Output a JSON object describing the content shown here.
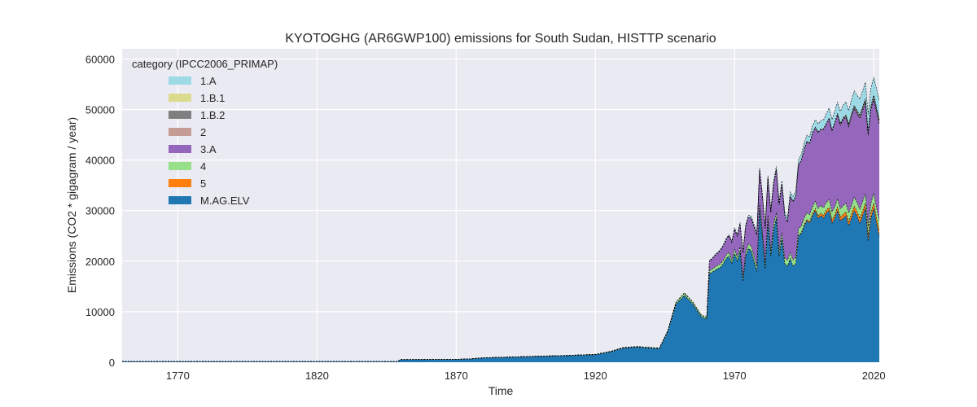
{
  "chart_data": {
    "type": "area",
    "stacked": true,
    "title": "KYOTOGHG (AR6GWP100) emissions for South Sudan, HISTTP scenario",
    "xlabel": "Time",
    "ylabel": "Emissions (CO2 * gigagram / year)",
    "xlim": [
      1750,
      2022
    ],
    "ylim": [
      0,
      62000
    ],
    "x_ticks": [
      1770,
      1820,
      1870,
      1920,
      1970,
      2020
    ],
    "y_ticks": [
      0,
      10000,
      20000,
      30000,
      40000,
      50000,
      60000
    ],
    "grid": true,
    "legend": {
      "title": "category (IPCC2006_PRIMAP)",
      "placement": "top-left",
      "entries": [
        "1.A",
        "1.B.1",
        "1.B.2",
        "2",
        "3.A",
        "4",
        "5",
        "M.AG.ELV"
      ]
    },
    "colors": {
      "M.AG.ELV": "#1f77b4",
      "5": "#ff7f0e",
      "4": "#98df8a",
      "3.A": "#9467bd",
      "2": "#c49c94",
      "1.B.2": "#7f7f7f",
      "1.B.1": "#dbdb8d",
      "1.A": "#9edae5"
    },
    "x": [
      1750,
      1849,
      1850,
      1870,
      1875,
      1880,
      1890,
      1900,
      1910,
      1920,
      1925,
      1930,
      1935,
      1940,
      1943,
      1946,
      1949,
      1952,
      1955,
      1958,
      1960,
      1961,
      1962,
      1963,
      1964,
      1965,
      1966,
      1967,
      1968,
      1969,
      1970,
      1971,
      1972,
      1973,
      1974,
      1975,
      1976,
      1977,
      1978,
      1979,
      1980,
      1981,
      1982,
      1983,
      1984,
      1985,
      1986,
      1987,
      1988,
      1989,
      1990,
      1991,
      1992,
      1993,
      1994,
      1995,
      1996,
      1997,
      1998,
      1999,
      2000,
      2001,
      2002,
      2003,
      2004,
      2005,
      2006,
      2007,
      2008,
      2009,
      2010,
      2011,
      2012,
      2013,
      2014,
      2015,
      2016,
      2017,
      2018,
      2019,
      2020,
      2021,
      2022
    ],
    "series": [
      {
        "name": "M.AG.ELV",
        "values": [
          150,
          150,
          500,
          550,
          650,
          850,
          1000,
          1150,
          1300,
          1500,
          2000,
          2800,
          3000,
          2800,
          2700,
          6000,
          11500,
          13200,
          11500,
          9000,
          8500,
          17500,
          17800,
          18200,
          18500,
          18800,
          19500,
          20500,
          21000,
          19500,
          21500,
          20000,
          22000,
          16000,
          21000,
          22500,
          22000,
          20000,
          18000,
          30500,
          25000,
          18500,
          28000,
          21000,
          26000,
          28500,
          21000,
          24500,
          19500,
          19000,
          20500,
          19000,
          19500,
          25000,
          25500,
          27000,
          28000,
          27500,
          29000,
          30000,
          28500,
          29000,
          28500,
          29500,
          30000,
          27500,
          28500,
          30000,
          28000,
          28500,
          29000,
          27000,
          28500,
          30000,
          29000,
          27500,
          29000,
          30500,
          24000,
          28500,
          30500,
          27500,
          25000
        ]
      },
      {
        "name": "5",
        "values": [
          0,
          0,
          0,
          0,
          0,
          0,
          0,
          0,
          0,
          0,
          0,
          0,
          0,
          0,
          0,
          0,
          0,
          0,
          0,
          0,
          0,
          0,
          0,
          0,
          0,
          0,
          0,
          0,
          0,
          0,
          0,
          0,
          0,
          0,
          0,
          0,
          0,
          0,
          0,
          0,
          0,
          0,
          0,
          0,
          0,
          0,
          0,
          0,
          0,
          0,
          0,
          0,
          0,
          100,
          150,
          200,
          250,
          300,
          350,
          400,
          450,
          500,
          550,
          600,
          600,
          650,
          650,
          700,
          700,
          750,
          750,
          800,
          800,
          850,
          850,
          900,
          900,
          950,
          950,
          1000,
          1000,
          1050,
          1050
        ]
      },
      {
        "name": "4",
        "values": [
          0,
          0,
          30,
          30,
          30,
          40,
          40,
          50,
          50,
          60,
          80,
          100,
          110,
          100,
          100,
          200,
          400,
          500,
          400,
          350,
          350,
          600,
          600,
          650,
          650,
          700,
          700,
          700,
          750,
          750,
          800,
          800,
          850,
          850,
          850,
          900,
          900,
          950,
          950,
          1000,
          1000,
          1000,
          1050,
          1050,
          1100,
          1100,
          1100,
          1150,
          1150,
          1200,
          1200,
          1250,
          1250,
          1300,
          1300,
          1350,
          1350,
          1400,
          1400,
          1450,
          1450,
          1500,
          1500,
          1550,
          1550,
          1600,
          1600,
          1650,
          1650,
          1700,
          1700,
          1750,
          1750,
          1800,
          1800,
          1850,
          1850,
          1900,
          1900,
          1950,
          1950,
          2000,
          2000
        ]
      },
      {
        "name": "3.A",
        "values": [
          0,
          0,
          0,
          0,
          0,
          0,
          0,
          0,
          0,
          0,
          0,
          0,
          0,
          0,
          0,
          0,
          0,
          0,
          0,
          0,
          0,
          2000,
          2100,
          2300,
          2500,
          2700,
          2900,
          3100,
          3300,
          3500,
          4000,
          4200,
          4500,
          4800,
          5000,
          5300,
          5600,
          5900,
          6200,
          6500,
          6800,
          7000,
          7300,
          7600,
          8000,
          8500,
          9000,
          9500,
          8500,
          7500,
          11000,
          11500,
          12000,
          12500,
          13000,
          13500,
          14000,
          14000,
          14500,
          14500,
          15000,
          15000,
          15500,
          15500,
          16000,
          16000,
          16500,
          16500,
          16500,
          17000,
          17000,
          17000,
          17500,
          17500,
          17500,
          18000,
          18000,
          18000,
          18000,
          18500,
          18500,
          19000,
          19000
        ]
      },
      {
        "name": "2",
        "values": [
          0,
          0,
          0,
          0,
          0,
          0,
          0,
          0,
          0,
          0,
          0,
          0,
          0,
          0,
          0,
          0,
          0,
          0,
          0,
          0,
          0,
          0,
          0,
          0,
          0,
          0,
          0,
          0,
          0,
          0,
          0,
          0,
          0,
          0,
          0,
          0,
          0,
          0,
          0,
          0,
          0,
          0,
          0,
          0,
          0,
          0,
          0,
          0,
          0,
          0,
          100,
          100,
          100,
          100,
          100,
          120,
          120,
          120,
          120,
          130,
          130,
          130,
          140,
          140,
          140,
          150,
          150,
          150,
          160,
          160,
          160,
          170,
          170,
          170,
          180,
          180,
          180,
          190,
          190,
          190,
          200,
          200,
          200
        ]
      },
      {
        "name": "1.B.2",
        "values": [
          0,
          0,
          0,
          0,
          0,
          0,
          0,
          0,
          0,
          0,
          0,
          0,
          0,
          0,
          0,
          0,
          0,
          0,
          0,
          0,
          0,
          0,
          0,
          0,
          0,
          0,
          0,
          0,
          0,
          0,
          0,
          0,
          0,
          0,
          0,
          0,
          0,
          0,
          0,
          0,
          0,
          0,
          0,
          0,
          0,
          0,
          0,
          0,
          0,
          0,
          0,
          0,
          0,
          0,
          0,
          0,
          0,
          0,
          0,
          0,
          0,
          0,
          0,
          0,
          0,
          0,
          100,
          150,
          200,
          250,
          300,
          350,
          400,
          450,
          500,
          500,
          550,
          550,
          600,
          600,
          650,
          650,
          700
        ]
      },
      {
        "name": "1.B.1",
        "values": [
          0,
          0,
          0,
          0,
          0,
          0,
          0,
          0,
          0,
          0,
          0,
          0,
          0,
          0,
          0,
          0,
          0,
          0,
          0,
          0,
          0,
          0,
          0,
          0,
          0,
          0,
          0,
          0,
          0,
          0,
          0,
          0,
          0,
          0,
          0,
          0,
          0,
          0,
          0,
          0,
          0,
          0,
          0,
          0,
          0,
          0,
          0,
          0,
          0,
          0,
          0,
          0,
          0,
          0,
          0,
          0,
          0,
          0,
          0,
          0,
          0,
          0,
          0,
          0,
          0,
          0,
          0,
          0,
          0,
          0,
          0,
          0,
          0,
          0,
          0,
          0,
          0,
          0,
          0,
          0,
          0,
          0,
          0
        ]
      },
      {
        "name": "1.A",
        "values": [
          0,
          0,
          0,
          0,
          0,
          0,
          0,
          0,
          0,
          0,
          0,
          0,
          0,
          0,
          0,
          0,
          0,
          0,
          0,
          0,
          0,
          100,
          100,
          120,
          120,
          150,
          150,
          180,
          180,
          200,
          250,
          280,
          300,
          320,
          350,
          380,
          400,
          420,
          450,
          480,
          500,
          520,
          550,
          580,
          600,
          650,
          700,
          750,
          800,
          850,
          900,
          950,
          1000,
          1050,
          1100,
          1150,
          1200,
          1300,
          1400,
          1500,
          1600,
          1700,
          1800,
          1900,
          2000,
          2100,
          2200,
          2300,
          2400,
          2500,
          2600,
          2700,
          2800,
          2900,
          3000,
          3100,
          3200,
          3300,
          3400,
          3500,
          3600,
          3700,
          3800
        ]
      }
    ]
  }
}
